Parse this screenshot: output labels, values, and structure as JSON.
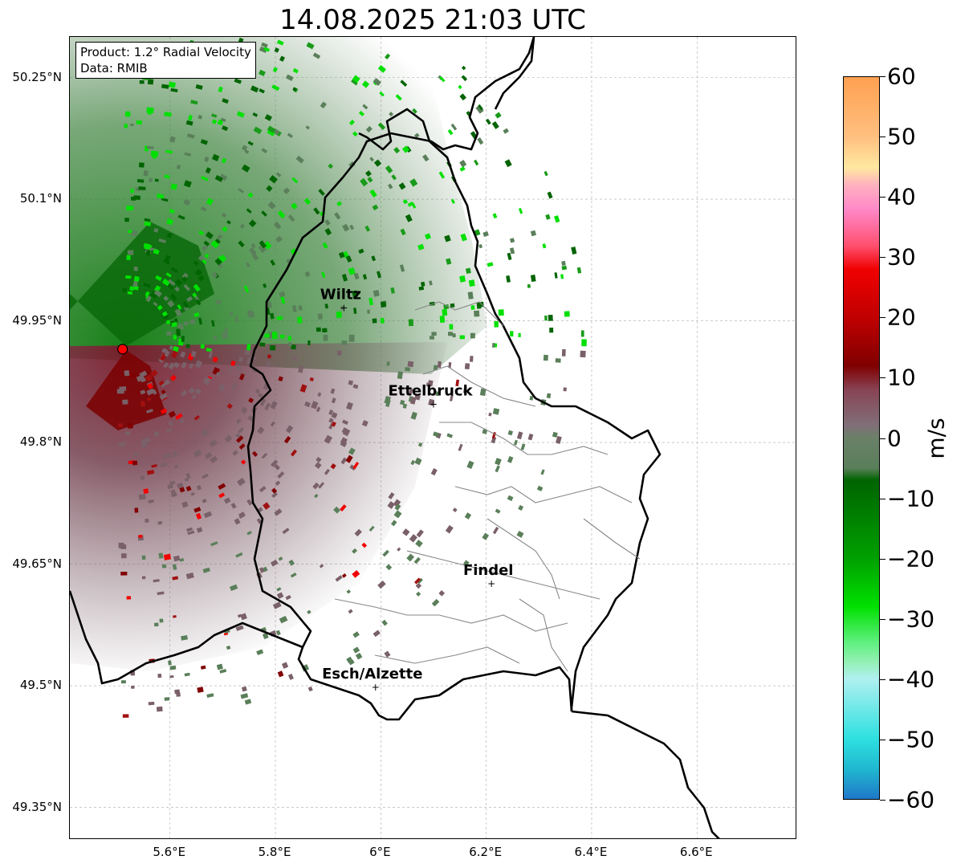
{
  "title": "14.08.2025 21:03 UTC",
  "info": {
    "product": "Product: 1.2° Radial Velocity",
    "data_source": "Data: RMIB"
  },
  "map": {
    "lon_range": [
      5.41,
      6.79
    ],
    "lat_range": [
      49.31,
      50.3
    ],
    "x_ticks": [
      "5.6°E",
      "5.8°E",
      "6°E",
      "6.2°E",
      "6.4°E",
      "6.6°E"
    ],
    "x_tick_values": [
      5.6,
      5.8,
      6.0,
      6.2,
      6.4,
      6.6
    ],
    "y_ticks": [
      "50.25°N",
      "50.1°N",
      "49.95°N",
      "49.8°N",
      "49.65°N",
      "49.5°N",
      "49.35°N"
    ],
    "y_tick_values": [
      50.25,
      50.1,
      49.95,
      49.8,
      49.65,
      49.5,
      49.35
    ],
    "gridlines": true,
    "radar_site": {
      "lon": 5.51,
      "lat": 49.915,
      "color": "#ff0000"
    },
    "cities": [
      {
        "name": "Wiltz",
        "lon": 5.93,
        "lat": 49.967
      },
      {
        "name": "Ettelbruck",
        "lon": 6.1,
        "lat": 49.848
      },
      {
        "name": "Findel",
        "lon": 6.21,
        "lat": 49.627
      },
      {
        "name": "Esch/Alzette",
        "lon": 5.99,
        "lat": 49.499
      }
    ]
  },
  "colorbar": {
    "unit": "m/s",
    "min": -60,
    "max": 60,
    "tick_labels": [
      "60",
      "50",
      "40",
      "30",
      "20",
      "10",
      "0",
      "−10",
      "−20",
      "−30",
      "−40",
      "−50",
      "−60"
    ],
    "tick_values": [
      60,
      50,
      40,
      30,
      20,
      10,
      0,
      -10,
      -20,
      -30,
      -40,
      -50,
      -60
    ],
    "colors": {
      "approaching_strong": "#1f78c8",
      "cyan": "#2ee0e0",
      "light_cyan": "#b0f0f0",
      "light_green": "#90f0b0",
      "bright_green": "#00e000",
      "dark_green": "#006400",
      "near_zero_green": "#5a7f5a",
      "near_zero_mauve": "#7a6068",
      "dark_red": "#800000",
      "red": "#f00000",
      "pink": "#ff60a0",
      "light_pink": "#ffb0c0",
      "yellow": "#ffe8a0",
      "orange": "#ffa050"
    }
  }
}
